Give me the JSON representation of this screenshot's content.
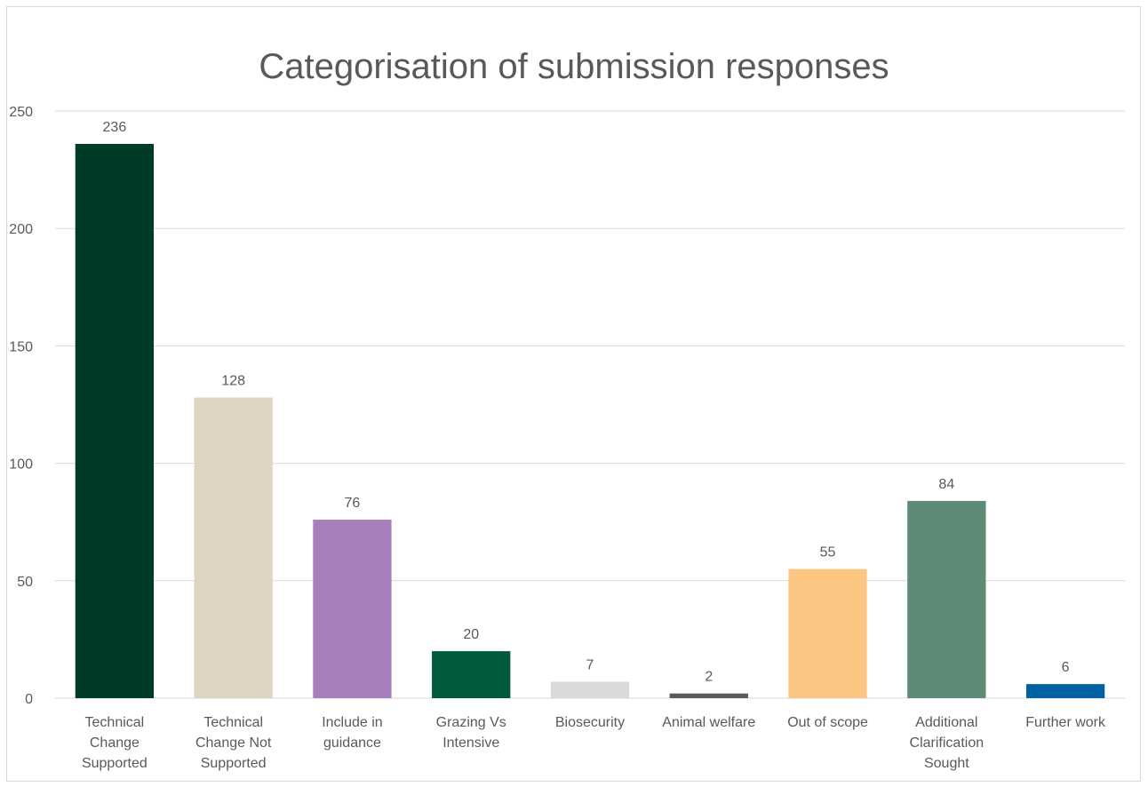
{
  "chart_data": {
    "type": "bar",
    "title": "Categorisation of submission responses",
    "xlabel": "",
    "ylabel": "",
    "ylim": [
      0,
      250
    ],
    "yticks": [
      0,
      50,
      100,
      150,
      200,
      250
    ],
    "grid": true,
    "legend": "none",
    "categories": [
      [
        "Technical",
        "Change",
        "Supported"
      ],
      [
        "Technical",
        "Change Not",
        "Supported"
      ],
      [
        "Include in",
        "guidance"
      ],
      [
        "Grazing Vs",
        "Intensive"
      ],
      [
        "Biosecurity"
      ],
      [
        "Animal welfare"
      ],
      [
        "Out of scope"
      ],
      [
        "Additional",
        "Clarification",
        "Sought"
      ],
      [
        "Further work"
      ]
    ],
    "values": [
      236,
      128,
      76,
      20,
      7,
      2,
      55,
      84,
      6
    ],
    "colors": [
      "#003a28",
      "#ddd5c2",
      "#a780bb",
      "#005a3e",
      "#d9d9d9",
      "#595959",
      "#fbc682",
      "#5e8b76",
      "#0062a3"
    ]
  }
}
